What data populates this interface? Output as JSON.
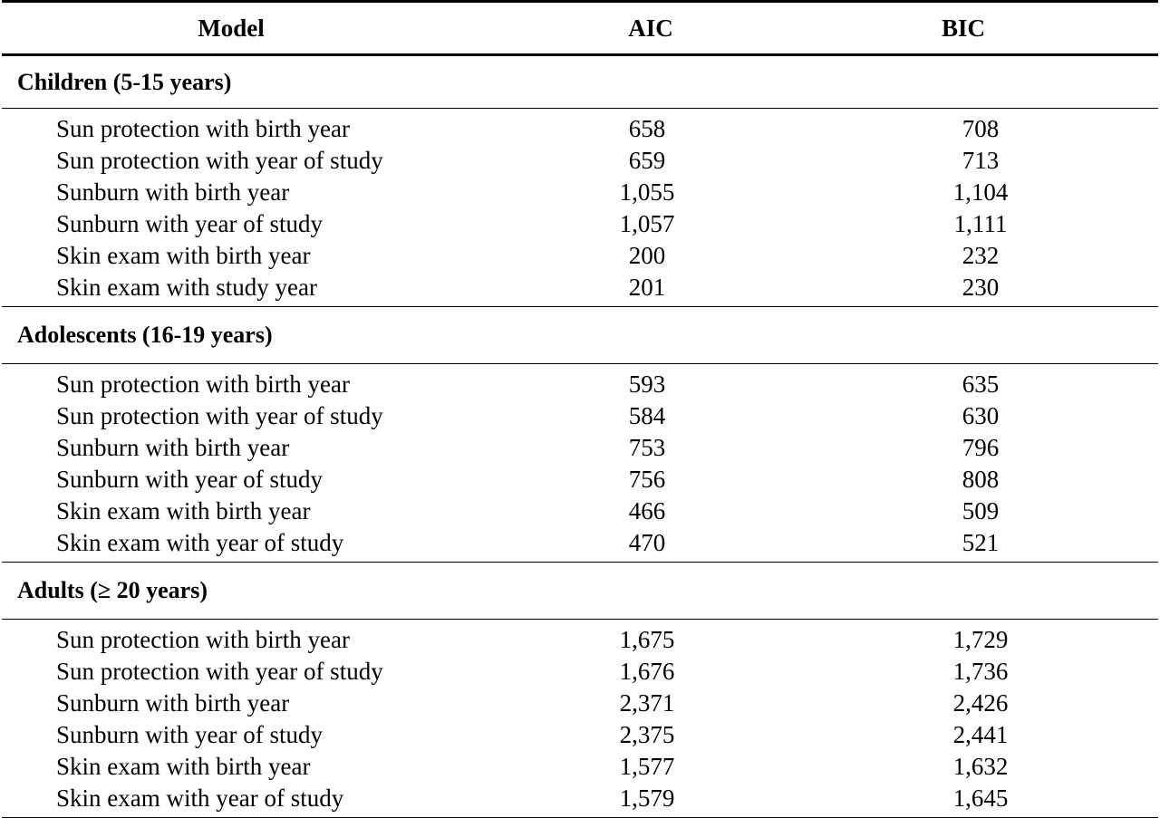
{
  "header": {
    "model": "Model",
    "aic": "AIC",
    "bic": "BIC"
  },
  "sections": [
    {
      "title": "Children (5-15 years)",
      "rows": [
        {
          "model": "Sun protection with birth year",
          "aic": "658",
          "bic": "708"
        },
        {
          "model": "Sun protection with year of study",
          "aic": "659",
          "bic": "713"
        },
        {
          "model": "Sunburn with birth year",
          "aic": "1,055",
          "bic": "1,104"
        },
        {
          "model": "Sunburn with year of study",
          "aic": "1,057",
          "bic": "1,111"
        },
        {
          "model": "Skin exam with birth year",
          "aic": "200",
          "bic": "232"
        },
        {
          "model": "Skin exam with study year",
          "aic": "201",
          "bic": "230"
        }
      ]
    },
    {
      "title": "Adolescents (16-19 years)",
      "rows": [
        {
          "model": "Sun protection with birth year",
          "aic": "593",
          "bic": "635"
        },
        {
          "model": "Sun protection with year of study",
          "aic": "584",
          "bic": "630"
        },
        {
          "model": "Sunburn with birth year",
          "aic": "753",
          "bic": "796"
        },
        {
          "model": "Sunburn with year of study",
          "aic": "756",
          "bic": "808"
        },
        {
          "model": "Skin exam with birth year",
          "aic": "466",
          "bic": "509"
        },
        {
          "model": "Skin exam with year of study",
          "aic": "470",
          "bic": "521"
        }
      ]
    },
    {
      "title": "Adults (≥ 20 years)",
      "rows": [
        {
          "model": "Sun protection with birth year",
          "aic": "1,675",
          "bic": "1,729"
        },
        {
          "model": "Sun protection with year of study",
          "aic": "1,676",
          "bic": "1,736"
        },
        {
          "model": "Sunburn with birth year",
          "aic": "2,371",
          "bic": "2,426"
        },
        {
          "model": "Sunburn with year of study",
          "aic": "2,375",
          "bic": "2,441"
        },
        {
          "model": "Skin exam with birth year",
          "aic": "1,577",
          "bic": "1,632"
        },
        {
          "model": "Skin exam with year of study",
          "aic": "1,579",
          "bic": "1,645"
        }
      ]
    }
  ]
}
